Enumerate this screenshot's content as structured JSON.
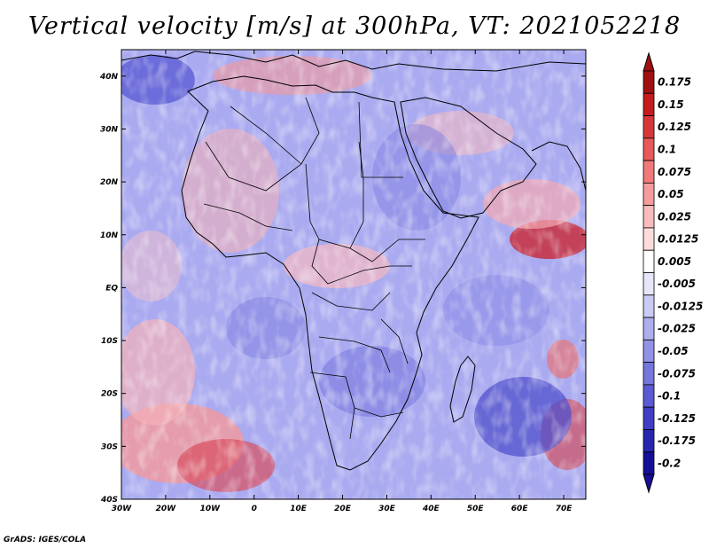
{
  "chart_data": {
    "type": "heatmap",
    "title": "Vertical velocity [m/s] at 300hPa, VT: 2021052218",
    "x_ticks": [
      "30W",
      "20W",
      "10W",
      "0",
      "10E",
      "20E",
      "30E",
      "40E",
      "50E",
      "60E",
      "70E"
    ],
    "y_ticks": [
      "40N",
      "30N",
      "20N",
      "10N",
      "EQ",
      "10S",
      "20S",
      "30S",
      "40S"
    ],
    "lon_range": [
      -30,
      75
    ],
    "lat_range": [
      -40,
      45
    ],
    "colorbar_labels": [
      "0.175",
      "0.15",
      "0.125",
      "0.1",
      "0.075",
      "0.05",
      "0.025",
      "0.0125",
      "0.005",
      "-0.005",
      "-0.0125",
      "-0.025",
      "-0.05",
      "-0.075",
      "-0.1",
      "-0.125",
      "-0.175",
      "-0.2"
    ],
    "colorbar_colors": [
      "#a01010",
      "#c41c1c",
      "#d8373a",
      "#e85a5a",
      "#f07a7a",
      "#f59c9c",
      "#f9bcbc",
      "#fcdcdc",
      "#ffffff",
      "#e6e6fb",
      "#cacaf5",
      "#aeaeee",
      "#9292e6",
      "#7676dd",
      "#5a5ad3",
      "#3e3ec6",
      "#2626b0",
      "#160e96"
    ],
    "map": "Africa, Arabian Peninsula and western Indian Ocean with country borders and coastlines"
  },
  "footer": {
    "credit": "GrADS: IGES/COLA"
  }
}
